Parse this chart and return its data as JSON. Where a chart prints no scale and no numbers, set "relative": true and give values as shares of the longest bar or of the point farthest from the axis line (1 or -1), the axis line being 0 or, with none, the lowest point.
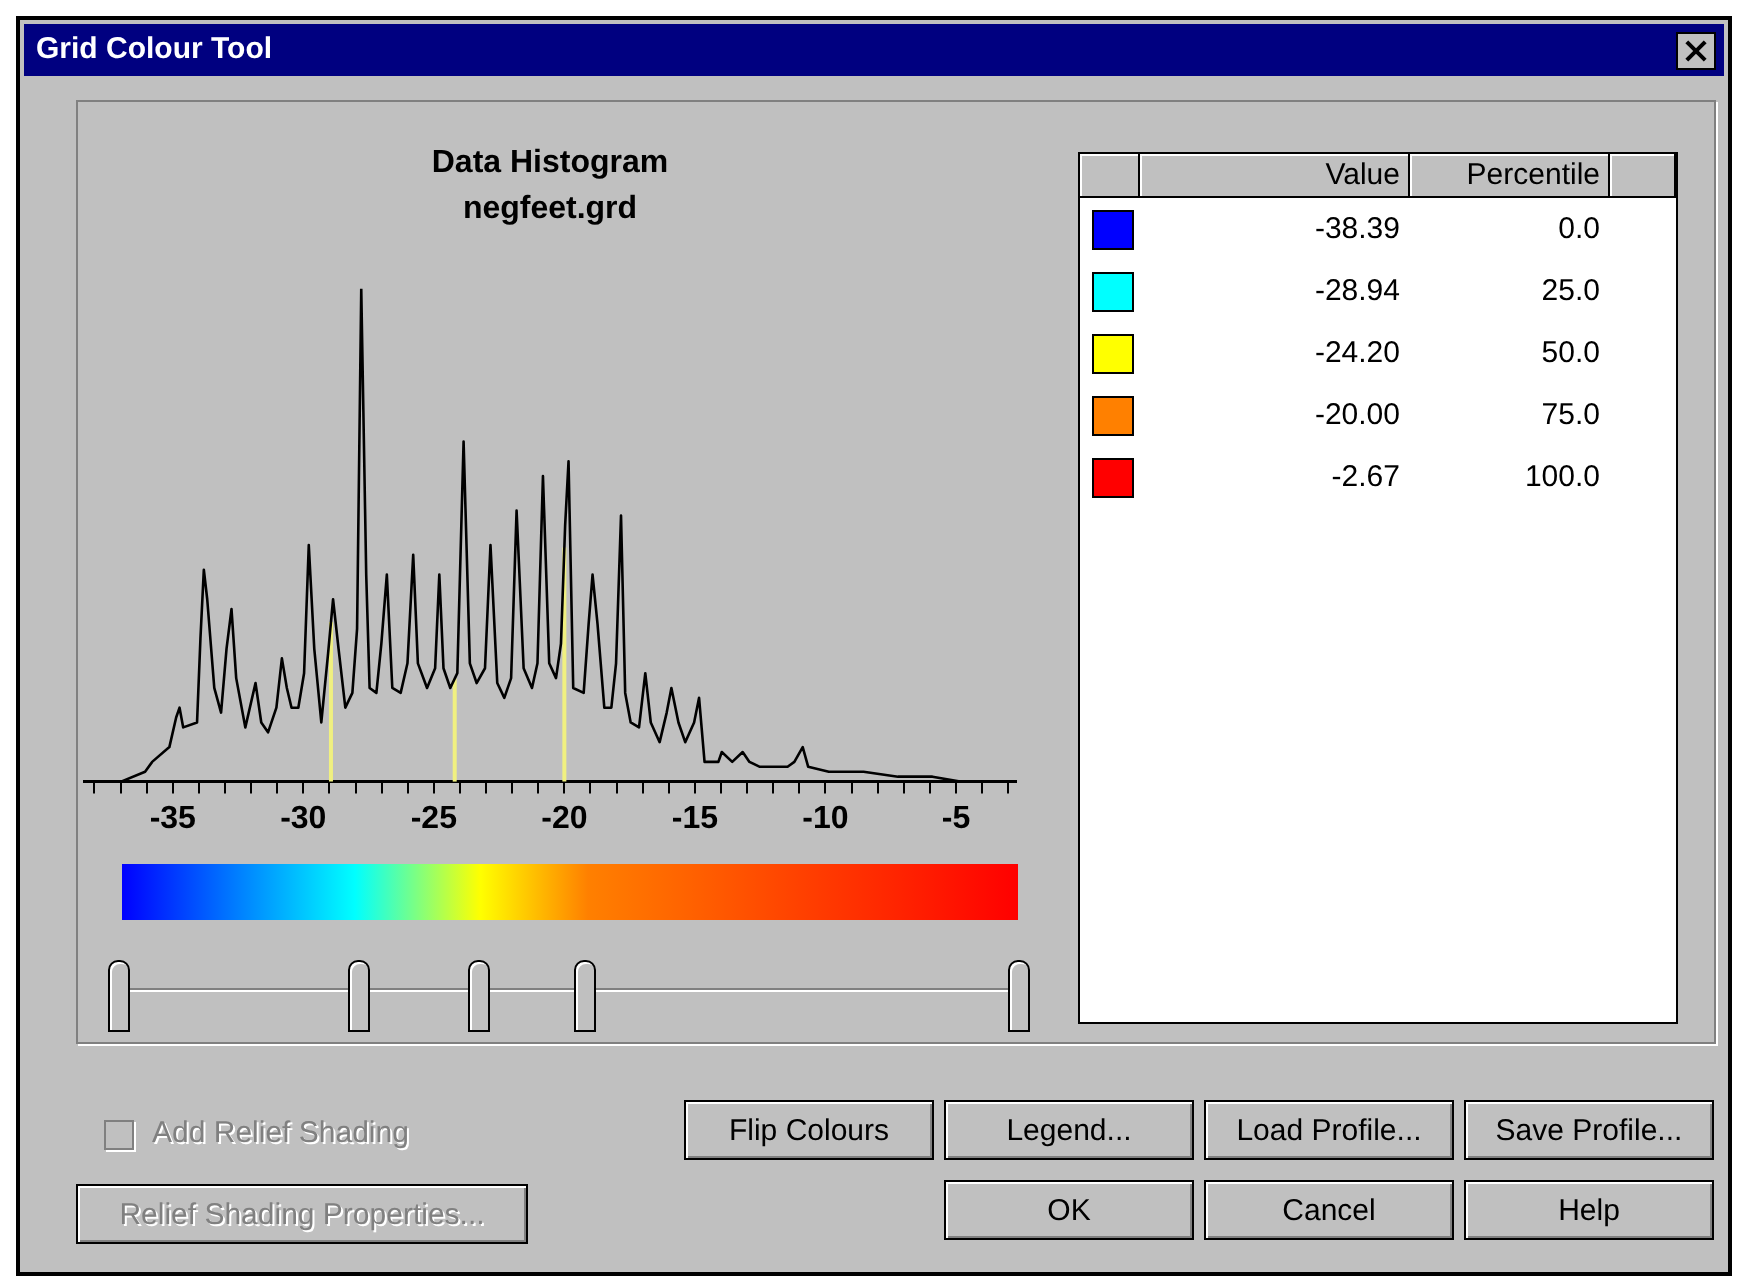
{
  "chart_data": {
    "type": "line",
    "title": "Data Histogram",
    "subtitle": "negfeet.grd",
    "relative": true,
    "tick_labels": "x",
    "legend": false,
    "grid": false,
    "marker": "none",
    "line_style": "solid",
    "xlim": [
      -38.4,
      -2.7
    ],
    "xticks": [
      {
        "value": -38,
        "label": null
      },
      {
        "value": -37,
        "label": null
      },
      {
        "value": -36,
        "label": null
      },
      -35,
      {
        "value": -34,
        "label": null
      },
      {
        "value": -33,
        "label": null
      },
      {
        "value": -32,
        "label": null
      },
      {
        "value": -31,
        "label": null
      },
      -30,
      {
        "value": -29,
        "label": null
      },
      {
        "value": -28,
        "label": null
      },
      {
        "value": -27,
        "label": null
      },
      {
        "value": -26,
        "label": null
      },
      -25,
      {
        "value": -24,
        "label": null
      },
      {
        "value": -23,
        "label": null
      },
      {
        "value": -22,
        "label": null
      },
      {
        "value": -21,
        "label": null
      },
      -20,
      {
        "value": -19,
        "label": null
      },
      {
        "value": -18,
        "label": null
      },
      {
        "value": -17,
        "label": null
      },
      {
        "value": -16,
        "label": null
      },
      -15,
      {
        "value": -14,
        "label": null
      },
      {
        "value": -13,
        "label": null
      },
      {
        "value": -12,
        "label": null
      },
      {
        "value": -11,
        "label": null
      },
      -10,
      {
        "value": -9,
        "label": null
      },
      {
        "value": -8,
        "label": null
      },
      {
        "value": -7,
        "label": null
      },
      {
        "value": -6,
        "label": null
      },
      -5,
      {
        "value": -4,
        "label": null
      },
      {
        "value": -3,
        "label": null
      }
    ],
    "series": [
      {
        "color": "#000000",
        "x": [
          -36.98,
          -36.06,
          -35.79,
          -35.13,
          -34.87,
          -34.74,
          -34.6,
          -34.07,
          -33.94,
          -33.81,
          -33.68,
          -33.41,
          -33.15,
          -32.94,
          -32.75,
          -32.57,
          -32.22,
          -31.83,
          -31.61,
          -31.35,
          -31.03,
          -30.82,
          -30.63,
          -30.45,
          -30.19,
          -29.97,
          -29.79,
          -29.58,
          -29.31,
          -29.05,
          -28.86,
          -28.65,
          -28.39,
          -28.12,
          -27.94,
          -27.78,
          -27.59,
          -27.46,
          -27.2,
          -27.01,
          -26.8,
          -26.59,
          -26.27,
          -26.01,
          -25.79,
          -25.61,
          -25.26,
          -24.95,
          -24.79,
          -24.63,
          -24.37,
          -24.1,
          -23.86,
          -23.62,
          -23.36,
          -23.04,
          -22.83,
          -22.57,
          -22.3,
          -22.04,
          -21.83,
          -21.56,
          -21.24,
          -21.03,
          -20.82,
          -20.58,
          -20.32,
          -20.13,
          -19.97,
          -19.84,
          -19.66,
          -19.26,
          -19.07,
          -18.92,
          -18.73,
          -18.47,
          -18.2,
          -18.02,
          -17.83,
          -17.67,
          -17.46,
          -17.14,
          -16.9,
          -16.69,
          -16.35,
          -16.08,
          -15.9,
          -15.63,
          -15.37,
          -15.03,
          -14.84,
          -14.63,
          -14.1,
          -13.97,
          -13.57,
          -13.17,
          -12.91,
          -12.51,
          -12.12,
          -11.45,
          -11.19,
          -10.87,
          -10.66,
          -9.87,
          -8.54,
          -7.22,
          -5.9,
          -4.84
        ],
        "values": [
          0,
          0.02,
          0.04,
          0.07,
          0.13,
          0.15,
          0.11,
          0.12,
          0.29,
          0.43,
          0.37,
          0.19,
          0.14,
          0.27,
          0.35,
          0.21,
          0.11,
          0.2,
          0.12,
          0.1,
          0.15,
          0.25,
          0.19,
          0.15,
          0.15,
          0.22,
          0.48,
          0.27,
          0.12,
          0.26,
          0.37,
          0.27,
          0.15,
          0.18,
          0.31,
          1,
          0.42,
          0.19,
          0.18,
          0.28,
          0.42,
          0.19,
          0.18,
          0.24,
          0.46,
          0.24,
          0.19,
          0.23,
          0.42,
          0.23,
          0.19,
          0.22,
          0.69,
          0.24,
          0.2,
          0.23,
          0.48,
          0.2,
          0.17,
          0.21,
          0.55,
          0.23,
          0.19,
          0.24,
          0.62,
          0.24,
          0.21,
          0.28,
          0.52,
          0.65,
          0.19,
          0.18,
          0.32,
          0.42,
          0.32,
          0.15,
          0.15,
          0.24,
          0.54,
          0.18,
          0.12,
          0.11,
          0.22,
          0.12,
          0.08,
          0.14,
          0.19,
          0.12,
          0.08,
          0.12,
          0.17,
          0.04,
          0.04,
          0.06,
          0.04,
          0.06,
          0.04,
          0.03,
          0.03,
          0.03,
          0.04,
          0.07,
          0.03,
          0.02,
          0.02,
          0.01,
          0.01,
          0
        ]
      }
    ],
    "ref_lines": [
      {
        "axis": "x",
        "value": -28.94,
        "color": "#f0f080"
      },
      {
        "axis": "x",
        "value": -24.2,
        "color": "#f0f080"
      },
      {
        "axis": "x",
        "value": -20.0,
        "color": "#f0f080"
      }
    ],
    "annotations": [
      "Grid Colour Tool",
      "Value",
      "Percentile",
      "-38.39",
      "0.0",
      "-28.94",
      "25.0",
      "-24.20",
      "50.0",
      "-20.00",
      "75.0",
      "-2.67",
      "100.0",
      "Add Relief Shading",
      "Relief Shading Properties...",
      "Flip Colours",
      "Legend...",
      "Load Profile...",
      "Save Profile...",
      "OK",
      "Cancel",
      "Help"
    ]
  }
}
